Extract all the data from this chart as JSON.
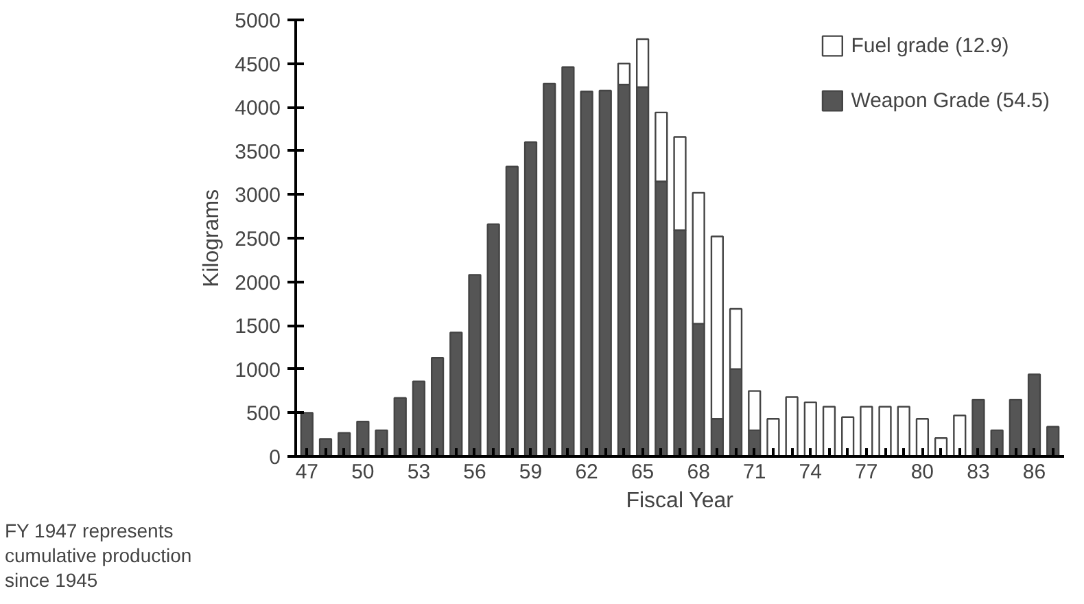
{
  "chart_data": {
    "type": "bar",
    "stacked": true,
    "xlabel": "Fiscal Year",
    "ylabel": "Kilograms",
    "categories": [
      "47",
      null,
      null,
      "50",
      null,
      null,
      "53",
      null,
      null,
      "56",
      null,
      null,
      "59",
      null,
      null,
      "62",
      null,
      null,
      "65",
      null,
      null,
      "68",
      null,
      null,
      "71",
      null,
      null,
      "74",
      null,
      null,
      "77",
      null,
      null,
      "80",
      null,
      null,
      "83",
      null,
      null,
      "86",
      null
    ],
    "series": [
      {
        "name": "Weapon Grade (54.5)",
        "color": "#555555",
        "values": [
          500,
          200,
          270,
          400,
          300,
          670,
          860,
          1130,
          1420,
          2080,
          2660,
          3320,
          3600,
          4270,
          4460,
          4180,
          4190,
          4260,
          4230,
          3150,
          2590,
          1520,
          430,
          1000,
          300,
          null,
          null,
          null,
          null,
          null,
          null,
          null,
          null,
          null,
          null,
          null,
          650,
          300,
          650,
          940,
          340
        ]
      },
      {
        "name": "Fuel grade (12.9)",
        "color": "#ffffff",
        "values": [
          null,
          null,
          null,
          null,
          null,
          null,
          null,
          null,
          null,
          null,
          null,
          null,
          null,
          null,
          null,
          null,
          null,
          240,
          550,
          790,
          1070,
          1500,
          2090,
          690,
          450,
          430,
          680,
          620,
          570,
          450,
          570,
          570,
          570,
          430,
          210,
          470,
          null,
          null,
          null,
          null,
          null
        ]
      }
    ],
    "ylim": [
      0,
      5000
    ],
    "yticks": [
      0,
      500,
      1000,
      1500,
      2000,
      2500,
      3000,
      3500,
      4000,
      4500,
      5000
    ],
    "grid": false,
    "legend": "top right",
    "annotations": [
      "FY 1947 represents\ncumulative production\nsince 1945"
    ]
  }
}
